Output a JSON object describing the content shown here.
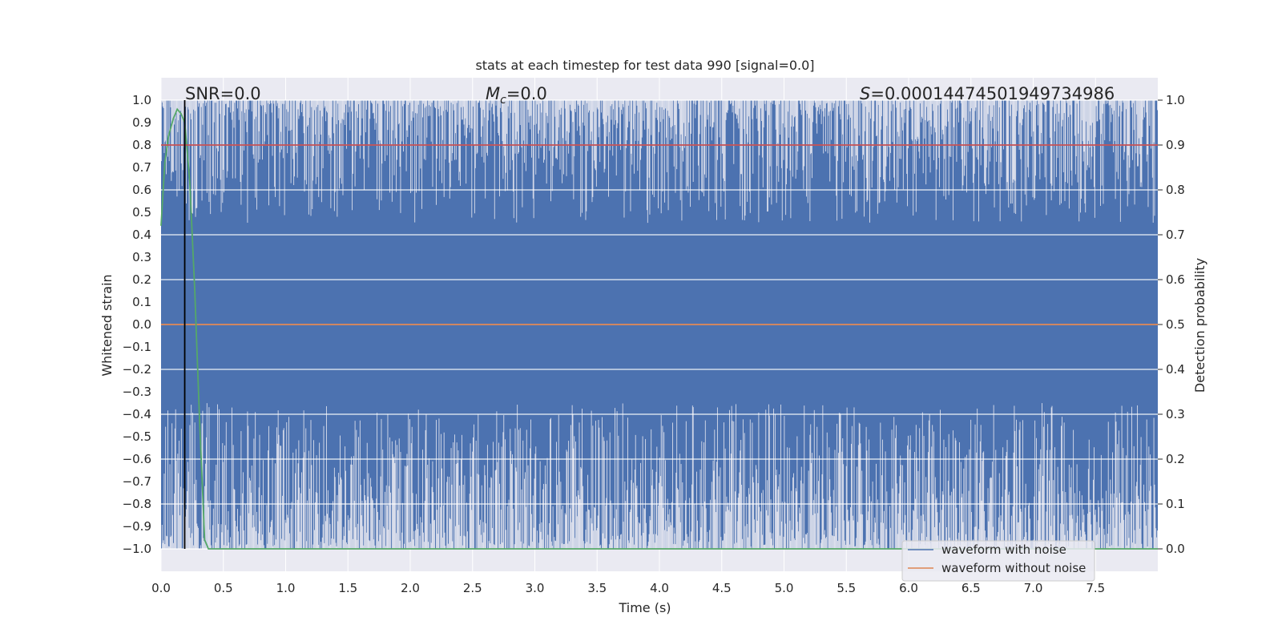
{
  "chart_data": {
    "type": "line",
    "title": "stats at each timestep for test data 990 [signal=0.0]",
    "xlabel": "Time (s)",
    "ylabel_left": "Whitened strain",
    "ylabel_right": "Detection probability",
    "xlim": [
      0.0,
      8.0
    ],
    "ylim_left": [
      -1.1,
      1.1
    ],
    "ylim_right": [
      -0.05,
      1.05
    ],
    "x_ticks": [
      "0.0",
      "0.5",
      "1.0",
      "1.5",
      "2.0",
      "2.5",
      "3.0",
      "3.5",
      "4.0",
      "4.5",
      "5.0",
      "5.5",
      "6.0",
      "6.5",
      "7.0",
      "7.5"
    ],
    "y_left_ticks": [
      "1.0",
      "0.9",
      "0.8",
      "0.7",
      "0.6",
      "0.5",
      "0.4",
      "0.3",
      "0.2",
      "0.1",
      "0.0",
      "−0.1",
      "−0.2",
      "−0.3",
      "−0.4",
      "−0.5",
      "−0.6",
      "−0.7",
      "−0.8",
      "−0.9",
      "−1.0"
    ],
    "y_right_ticks": [
      "1.0",
      "0.9",
      "0.8",
      "0.7",
      "0.6",
      "0.5",
      "0.4",
      "0.3",
      "0.2",
      "0.1",
      "0.0"
    ],
    "grid": true,
    "annotations": {
      "snr_text": "SNR=0.0",
      "mc_symbol": "M",
      "mc_sub": "c",
      "mc_value": "=0.0",
      "s_symbol": "S",
      "s_value": "=0.00014474501949734986"
    },
    "legend_position": "lower-right",
    "series": [
      {
        "name": "waveform with noise",
        "axis": "left",
        "color": "#4c72b0",
        "description_range": [
          -1.0,
          1.0
        ]
      },
      {
        "name": "waveform without noise",
        "axis": "left",
        "color": "#dd8452",
        "x": [
          0.0,
          8.0
        ],
        "y": [
          0.0,
          0.0
        ]
      },
      {
        "axis": "right",
        "color": "#55a868",
        "x": [
          0.0,
          0.03,
          0.06,
          0.1,
          0.13,
          0.16,
          0.19,
          0.23,
          0.27,
          0.31,
          0.35,
          0.38,
          8.0
        ],
        "y": [
          0.72,
          0.86,
          0.92,
          0.96,
          0.98,
          0.97,
          0.95,
          0.82,
          0.58,
          0.28,
          0.02,
          0.0,
          0.0
        ]
      },
      {
        "axis": "right",
        "color": "#c44e52",
        "x": [
          0.0,
          8.0
        ],
        "y": [
          0.9,
          0.9
        ]
      }
    ],
    "vertical_marker_x": 0.19
  },
  "colors": {
    "plot_background": "#eaeaf2",
    "grid": "#ffffff",
    "noise_fill": "#4c72b0",
    "marker_line": "#000000"
  }
}
